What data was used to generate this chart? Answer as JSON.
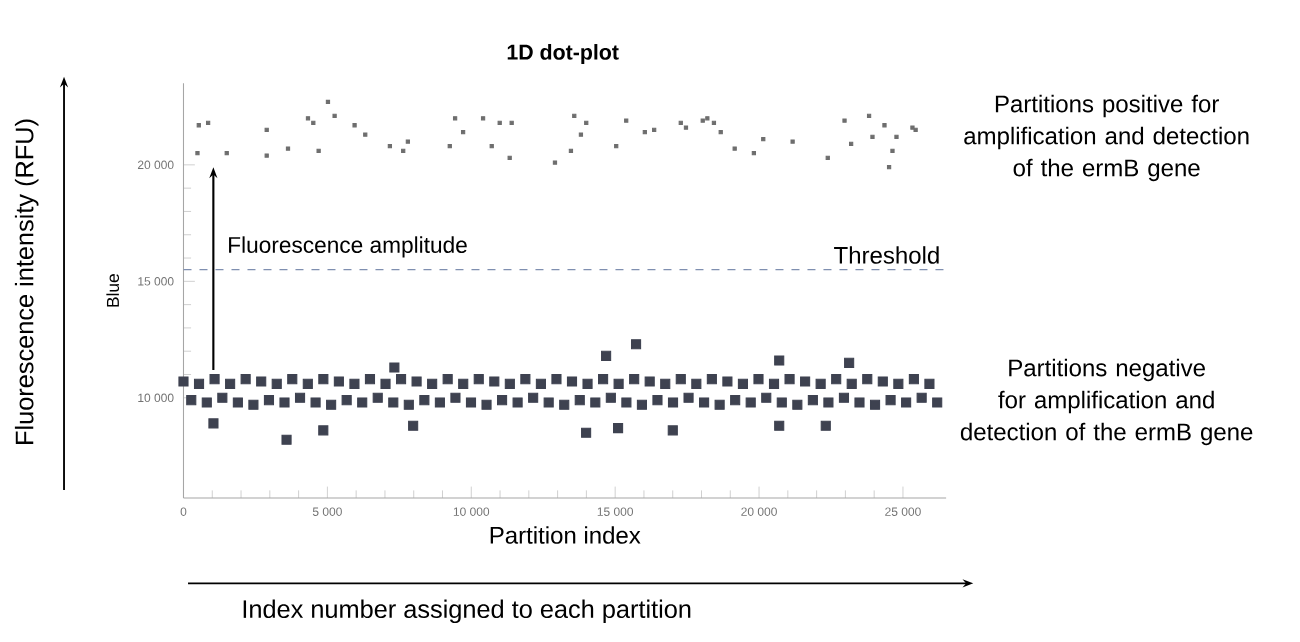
{
  "chart_data": {
    "type": "scatter",
    "title": "1D dot-plot",
    "xlabel": "Partition index",
    "ylabel": "Blue",
    "xlim": [
      0,
      26500
    ],
    "ylim": [
      5700,
      23500
    ],
    "xticks": [
      0,
      {
        "value": 5000,
        "label": "5 000"
      },
      {
        "value": 10000,
        "label": "10 000"
      },
      {
        "value": 15000,
        "label": "15 000"
      },
      {
        "value": 20000,
        "label": "20 000"
      },
      {
        "value": 25000,
        "label": "25 000"
      }
    ],
    "yticks": [
      {
        "value": 10000,
        "label": "10 000"
      },
      {
        "value": 15000,
        "label": "15 000"
      },
      {
        "value": 20000,
        "label": "20 000"
      }
    ],
    "marker": "square",
    "grid": false,
    "series": [
      {
        "color": "#6e6e6e",
        "x": [
          532,
          856,
          486,
          1503,
          2892,
          2892,
          3632,
          4326,
          4511,
          4696,
          5020,
          5251,
          5945,
          6316,
          7172,
          7635,
          7797,
          9253,
          9438,
          9716,
          10410,
          10711,
          10988,
          11335,
          11404,
          12908,
          13463,
          13579,
          13810,
          13995,
          15036,
          15384,
          16031,
          16355,
          17280,
          17460,
          18043,
          18203,
          18432,
          18668,
          19153,
          19820,
          20146,
          21166,
          22387,
          22970,
          23199,
          23823,
          23941,
          24358,
          24636,
          24775,
          24518,
          25330,
          25440
        ],
        "values": [
          21700,
          21800,
          20500,
          20500,
          21500,
          20400,
          20700,
          22000,
          21800,
          20600,
          22700,
          22100,
          21700,
          21300,
          20800,
          20600,
          21000,
          20800,
          22000,
          21400,
          22000,
          20800,
          21800,
          20300,
          21800,
          20100,
          20600,
          22100,
          21300,
          21800,
          20800,
          21900,
          21400,
          21500,
          21800,
          21600,
          21900,
          22000,
          21800,
          21400,
          20700,
          20500,
          21100,
          21000,
          20300,
          21900,
          20900,
          22100,
          21200,
          21700,
          20600,
          21200,
          19900,
          21600,
          21500
        ]
      },
      {
        "color": "#3e4250",
        "x": [
          0,
          270,
          540,
          810,
          1080,
          1350,
          1620,
          1890,
          2160,
          2430,
          2700,
          2970,
          3240,
          3510,
          3780,
          4050,
          4320,
          4590,
          4860,
          5130,
          5400,
          5670,
          5940,
          6210,
          6480,
          6750,
          7020,
          7290,
          7560,
          7830,
          8100,
          8370,
          8640,
          8910,
          9180,
          9450,
          9720,
          9990,
          10260,
          10530,
          10800,
          11070,
          11340,
          11610,
          11880,
          12150,
          12420,
          12690,
          12960,
          13230,
          13500,
          13770,
          14040,
          14310,
          14580,
          14850,
          15120,
          15390,
          15660,
          15930,
          16200,
          16470,
          16740,
          17010,
          17280,
          17550,
          17820,
          18090,
          18360,
          18630,
          18900,
          19170,
          19440,
          19710,
          19980,
          20250,
          20520,
          20790,
          21060,
          21330,
          21600,
          21870,
          22140,
          22410,
          22680,
          22950,
          23220,
          23490,
          23760,
          24030,
          24300,
          24570,
          24840,
          25110,
          25380,
          25650,
          25920,
          26190,
          3581,
          13990,
          7328,
          15726,
          14685,
          23130,
          20700,
          20700,
          17002,
          7980,
          1041,
          4858,
          22318,
          15101
        ],
        "values": [
          10700,
          9900,
          10600,
          9800,
          10800,
          10000,
          10600,
          9800,
          10800,
          9700,
          10700,
          9900,
          10600,
          9800,
          10800,
          10000,
          10600,
          9800,
          10800,
          9700,
          10700,
          9900,
          10600,
          9800,
          10800,
          10000,
          10600,
          9800,
          10800,
          9700,
          10700,
          9900,
          10600,
          9800,
          10800,
          10000,
          10600,
          9800,
          10800,
          9700,
          10700,
          9900,
          10600,
          9800,
          10800,
          10000,
          10600,
          9800,
          10800,
          9700,
          10700,
          9900,
          10600,
          9800,
          10800,
          10000,
          10600,
          9800,
          10800,
          9700,
          10700,
          9900,
          10600,
          9800,
          10800,
          10000,
          10600,
          9800,
          10800,
          9700,
          10700,
          9900,
          10600,
          9800,
          10800,
          10000,
          10600,
          9800,
          10800,
          9700,
          10700,
          9900,
          10600,
          9800,
          10800,
          10000,
          10600,
          9800,
          10800,
          9700,
          10700,
          9900,
          10600,
          9800,
          10800,
          10000,
          10600,
          9800,
          8200,
          8500,
          11300,
          12300,
          11800,
          11500,
          11600,
          8800,
          8600,
          8800,
          8900,
          8600,
          8800,
          8700
        ]
      }
    ],
    "ref_lines": [
      {
        "axis": "y",
        "value": 15500,
        "label": "Threshold",
        "color": "#7f8fb0",
        "line_style": "dashed"
      }
    ],
    "annotations": [
      "Fluorescence amplitude",
      "Partitions positive for amplification and detection of the ermB gene",
      "Partitions negative for amplification and detection of the ermB gene",
      "Fluorescence intensity (RFU)",
      "Index number assigned to each partition"
    ]
  }
}
